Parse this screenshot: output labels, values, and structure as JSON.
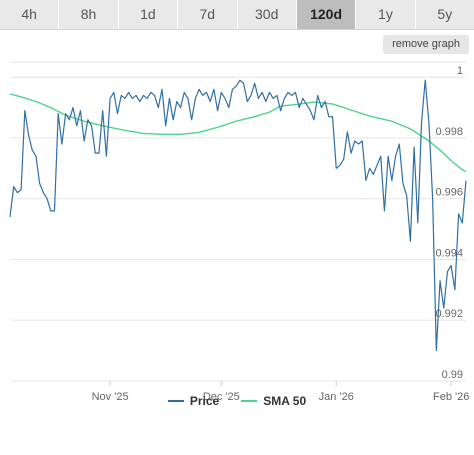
{
  "tabs": [
    {
      "label": "4h",
      "active": false
    },
    {
      "label": "8h",
      "active": false
    },
    {
      "label": "1d",
      "active": false
    },
    {
      "label": "7d",
      "active": false
    },
    {
      "label": "30d",
      "active": false
    },
    {
      "label": "120d",
      "active": true
    },
    {
      "label": "1y",
      "active": false
    },
    {
      "label": "5y",
      "active": false
    }
  ],
  "remove_graph_label": "remove graph",
  "colors": {
    "price": "#2f6fa6",
    "sma": "#4cd48a",
    "grid": "#e6e6e6",
    "axis_text": "#666666"
  },
  "chart_data": {
    "type": "line",
    "ylim": [
      0.99,
      1.0005
    ],
    "y_ticks": [
      {
        "value": 1.0,
        "label": "1"
      },
      {
        "value": 0.998,
        "label": "0.998"
      },
      {
        "value": 0.996,
        "label": "0.996"
      },
      {
        "value": 0.994,
        "label": "0.994"
      },
      {
        "value": 0.992,
        "label": "0.992"
      },
      {
        "value": 0.99,
        "label": "0.99"
      }
    ],
    "xlim": [
      "2025-10-05",
      "2026-02-05"
    ],
    "x_ticks": [
      {
        "date": "2025-11-01",
        "label": "Nov '25"
      },
      {
        "date": "2025-12-01",
        "label": "Dec '25"
      },
      {
        "date": "2026-01-01",
        "label": "Jan '26"
      },
      {
        "date": "2026-02-01",
        "label": "Feb '26"
      }
    ],
    "series": [
      {
        "name": "Price",
        "key": "price",
        "points": [
          [
            "2025-10-05",
            0.9954
          ],
          [
            "2025-10-06",
            0.9964
          ],
          [
            "2025-10-07",
            0.9962
          ],
          [
            "2025-10-08",
            0.9963
          ],
          [
            "2025-10-09",
            0.9989
          ],
          [
            "2025-10-10",
            0.9981
          ],
          [
            "2025-10-11",
            0.9976
          ],
          [
            "2025-10-12",
            0.9974
          ],
          [
            "2025-10-13",
            0.9965
          ],
          [
            "2025-10-14",
            0.9962
          ],
          [
            "2025-10-15",
            0.996
          ],
          [
            "2025-10-16",
            0.9956
          ],
          [
            "2025-10-17",
            0.9956
          ],
          [
            "2025-10-18",
            0.9988
          ],
          [
            "2025-10-19",
            0.9978
          ],
          [
            "2025-10-20",
            0.9988
          ],
          [
            "2025-10-21",
            0.9986
          ],
          [
            "2025-10-22",
            0.999
          ],
          [
            "2025-10-23",
            0.9984
          ],
          [
            "2025-10-24",
            0.9989
          ],
          [
            "2025-10-25",
            0.9979
          ],
          [
            "2025-10-26",
            0.9986
          ],
          [
            "2025-10-27",
            0.9984
          ],
          [
            "2025-10-28",
            0.9975
          ],
          [
            "2025-10-29",
            0.9975
          ],
          [
            "2025-10-30",
            0.9989
          ],
          [
            "2025-10-31",
            0.9974
          ],
          [
            "2025-11-01",
            0.9993
          ],
          [
            "2025-11-02",
            0.9995
          ],
          [
            "2025-11-03",
            0.9988
          ],
          [
            "2025-11-04",
            0.9994
          ],
          [
            "2025-11-05",
            0.9993
          ],
          [
            "2025-11-06",
            0.9995
          ],
          [
            "2025-11-07",
            0.9993
          ],
          [
            "2025-11-08",
            0.9994
          ],
          [
            "2025-11-09",
            0.9992
          ],
          [
            "2025-11-10",
            0.9994
          ],
          [
            "2025-11-11",
            0.9993
          ],
          [
            "2025-11-12",
            0.9995
          ],
          [
            "2025-11-13",
            0.9994
          ],
          [
            "2025-11-14",
            0.999
          ],
          [
            "2025-11-15",
            0.9996
          ],
          [
            "2025-11-16",
            0.9984
          ],
          [
            "2025-11-17",
            0.9993
          ],
          [
            "2025-11-18",
            0.9986
          ],
          [
            "2025-11-19",
            0.9992
          ],
          [
            "2025-11-20",
            0.999
          ],
          [
            "2025-11-21",
            0.9995
          ],
          [
            "2025-11-22",
            0.9993
          ],
          [
            "2025-11-23",
            0.9986
          ],
          [
            "2025-11-24",
            0.9993
          ],
          [
            "2025-11-25",
            0.9996
          ],
          [
            "2025-11-26",
            0.9994
          ],
          [
            "2025-11-27",
            0.9995
          ],
          [
            "2025-11-28",
            0.9992
          ],
          [
            "2025-11-29",
            0.9996
          ],
          [
            "2025-11-30",
            0.9989
          ],
          [
            "2025-12-01",
            0.9995
          ],
          [
            "2025-12-02",
            0.9993
          ],
          [
            "2025-12-03",
            0.999
          ],
          [
            "2025-12-04",
            0.9996
          ],
          [
            "2025-12-05",
            0.9997
          ],
          [
            "2025-12-06",
            0.9999
          ],
          [
            "2025-12-07",
            0.9998
          ],
          [
            "2025-12-08",
            0.9992
          ],
          [
            "2025-12-09",
            0.9994
          ],
          [
            "2025-12-10",
            0.9998
          ],
          [
            "2025-12-11",
            0.9993
          ],
          [
            "2025-12-12",
            0.9995
          ],
          [
            "2025-12-13",
            0.9992
          ],
          [
            "2025-12-14",
            0.9995
          ],
          [
            "2025-12-15",
            0.9993
          ],
          [
            "2025-12-16",
            0.9994
          ],
          [
            "2025-12-17",
            0.9989
          ],
          [
            "2025-12-18",
            0.9993
          ],
          [
            "2025-12-19",
            0.9995
          ],
          [
            "2025-12-20",
            0.9994
          ],
          [
            "2025-12-21",
            0.9995
          ],
          [
            "2025-12-22",
            0.999
          ],
          [
            "2025-12-23",
            0.9993
          ],
          [
            "2025-12-24",
            0.9991
          ],
          [
            "2025-12-25",
            0.9989
          ],
          [
            "2025-12-26",
            0.9986
          ],
          [
            "2025-12-27",
            0.9994
          ],
          [
            "2025-12-28",
            0.999
          ],
          [
            "2025-12-29",
            0.9992
          ],
          [
            "2025-12-30",
            0.9987
          ],
          [
            "2025-12-31",
            0.9987
          ],
          [
            "2026-01-01",
            0.997
          ],
          [
            "2026-01-02",
            0.9971
          ],
          [
            "2026-01-03",
            0.9973
          ],
          [
            "2026-01-04",
            0.9982
          ],
          [
            "2026-01-05",
            0.9975
          ],
          [
            "2026-01-06",
            0.9979
          ],
          [
            "2026-01-07",
            0.9978
          ],
          [
            "2026-01-08",
            0.9979
          ],
          [
            "2026-01-09",
            0.9966
          ],
          [
            "2026-01-10",
            0.997
          ],
          [
            "2026-01-11",
            0.9968
          ],
          [
            "2026-01-12",
            0.9971
          ],
          [
            "2026-01-13",
            0.9974
          ],
          [
            "2026-01-14",
            0.9956
          ],
          [
            "2026-01-15",
            0.9974
          ],
          [
            "2026-01-16",
            0.9966
          ],
          [
            "2026-01-17",
            0.9974
          ],
          [
            "2026-01-18",
            0.9978
          ],
          [
            "2026-01-19",
            0.9965
          ],
          [
            "2026-01-20",
            0.9961
          ],
          [
            "2026-01-21",
            0.9946
          ],
          [
            "2026-01-22",
            0.9977
          ],
          [
            "2026-01-23",
            0.9952
          ],
          [
            "2026-01-24",
            0.9985
          ],
          [
            "2026-01-25",
            0.9999
          ],
          [
            "2026-01-26",
            0.9985
          ],
          [
            "2026-01-27",
            0.996
          ],
          [
            "2026-01-28",
            0.991
          ],
          [
            "2026-01-29",
            0.9933
          ],
          [
            "2026-01-30",
            0.9924
          ],
          [
            "2026-01-31",
            0.9936
          ],
          [
            "2026-02-01",
            0.9938
          ],
          [
            "2026-02-02",
            0.993
          ],
          [
            "2026-02-03",
            0.9955
          ],
          [
            "2026-02-04",
            0.9952
          ],
          [
            "2026-02-05",
            0.9966
          ]
        ]
      },
      {
        "name": "SMA 50",
        "key": "sma",
        "points": [
          [
            "2025-10-05",
            0.99945
          ],
          [
            "2025-10-08",
            0.99935
          ],
          [
            "2025-10-12",
            0.9992
          ],
          [
            "2025-10-16",
            0.999
          ],
          [
            "2025-10-20",
            0.99875
          ],
          [
            "2025-10-25",
            0.99855
          ],
          [
            "2025-10-30",
            0.9984
          ],
          [
            "2025-11-05",
            0.99825
          ],
          [
            "2025-11-10",
            0.99815
          ],
          [
            "2025-11-15",
            0.99812
          ],
          [
            "2025-11-20",
            0.99812
          ],
          [
            "2025-11-25",
            0.99818
          ],
          [
            "2025-11-30",
            0.99835
          ],
          [
            "2025-12-05",
            0.99855
          ],
          [
            "2025-12-10",
            0.9987
          ],
          [
            "2025-12-14",
            0.99885
          ],
          [
            "2025-12-17",
            0.99905
          ],
          [
            "2025-12-21",
            0.9991
          ],
          [
            "2025-12-26",
            0.99918
          ],
          [
            "2025-12-31",
            0.99912
          ],
          [
            "2026-01-05",
            0.99892
          ],
          [
            "2026-01-10",
            0.99872
          ],
          [
            "2026-01-16",
            0.99855
          ],
          [
            "2026-01-21",
            0.9983
          ],
          [
            "2026-01-26",
            0.9979
          ],
          [
            "2026-01-29",
            0.9976
          ],
          [
            "2026-02-01",
            0.99725
          ],
          [
            "2026-02-04",
            0.99695
          ],
          [
            "2026-02-05",
            0.9969
          ]
        ]
      }
    ],
    "legend": [
      {
        "name": "Price",
        "key": "price"
      },
      {
        "name": "SMA 50",
        "key": "sma"
      }
    ],
    "legend_position": "bottom-center",
    "grid": true
  }
}
